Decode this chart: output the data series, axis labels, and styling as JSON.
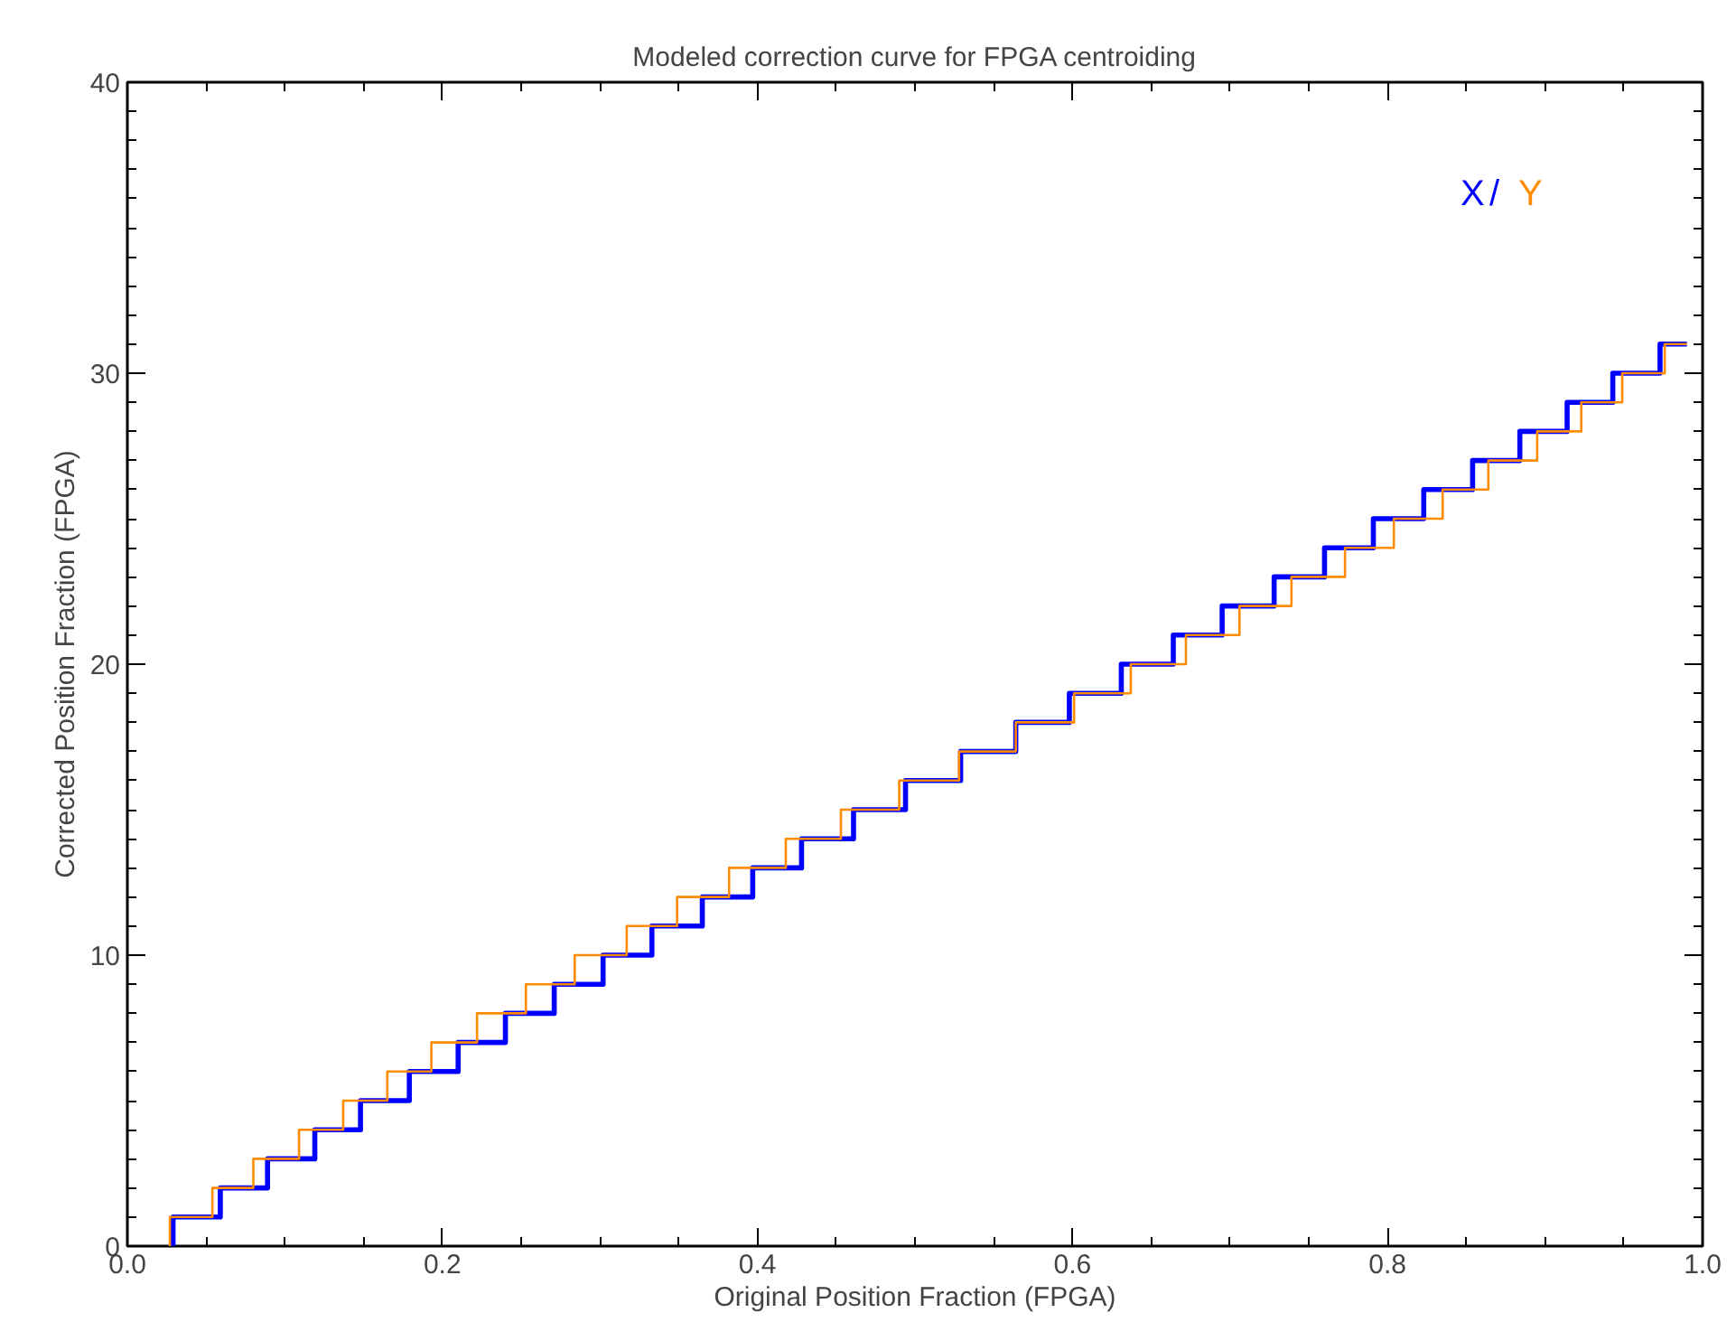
{
  "chart_data": {
    "type": "step",
    "title": "Modeled correction curve for FPGA centroiding",
    "xlabel": "Original Position Fraction (FPGA)",
    "ylabel": "Corrected Position Fraction (FPGA)",
    "series": [
      {
        "name": "X",
        "color": "#0000ff",
        "x": [
          0.029,
          0.029,
          0.059,
          0.089,
          0.119,
          0.148,
          0.179,
          0.21,
          0.24,
          0.271,
          0.302,
          0.333,
          0.365,
          0.397,
          0.428,
          0.461,
          0.494,
          0.529,
          0.564,
          0.598,
          0.631,
          0.664,
          0.695,
          0.728,
          0.76,
          0.791,
          0.823,
          0.854,
          0.884,
          0.914,
          0.943,
          0.973,
          0.99
        ],
        "values": [
          0,
          1,
          2,
          3,
          4,
          5,
          6,
          7,
          8,
          9,
          10,
          11,
          12,
          13,
          14,
          15,
          16,
          17,
          18,
          19,
          20,
          21,
          22,
          23,
          24,
          25,
          26,
          27,
          28,
          29,
          30,
          31,
          31
        ]
      },
      {
        "name": "Y",
        "color": "#ff8c00",
        "x": [
          0.027,
          0.027,
          0.054,
          0.08,
          0.109,
          0.137,
          0.165,
          0.193,
          0.222,
          0.253,
          0.284,
          0.317,
          0.349,
          0.382,
          0.418,
          0.453,
          0.49,
          0.528,
          0.564,
          0.601,
          0.637,
          0.672,
          0.706,
          0.739,
          0.773,
          0.804,
          0.835,
          0.864,
          0.895,
          0.923,
          0.949,
          0.976,
          0.99
        ],
        "values": [
          0,
          1,
          2,
          3,
          4,
          5,
          6,
          7,
          8,
          9,
          10,
          11,
          12,
          13,
          14,
          15,
          16,
          17,
          18,
          19,
          20,
          21,
          22,
          23,
          24,
          25,
          26,
          27,
          28,
          29,
          30,
          31,
          31
        ]
      }
    ],
    "annotations": [
      "/"
    ],
    "legend": "top right",
    "xlim": [
      0,
      1
    ],
    "ylim": [
      0,
      40
    ],
    "xticks": [
      {
        "value": 0,
        "label": "0.0"
      },
      0.2,
      0.4,
      0.6,
      0.8,
      {
        "value": 1,
        "label": "1.0"
      }
    ],
    "yticks": [
      0,
      10,
      20,
      30,
      40
    ],
    "grid": false
  }
}
